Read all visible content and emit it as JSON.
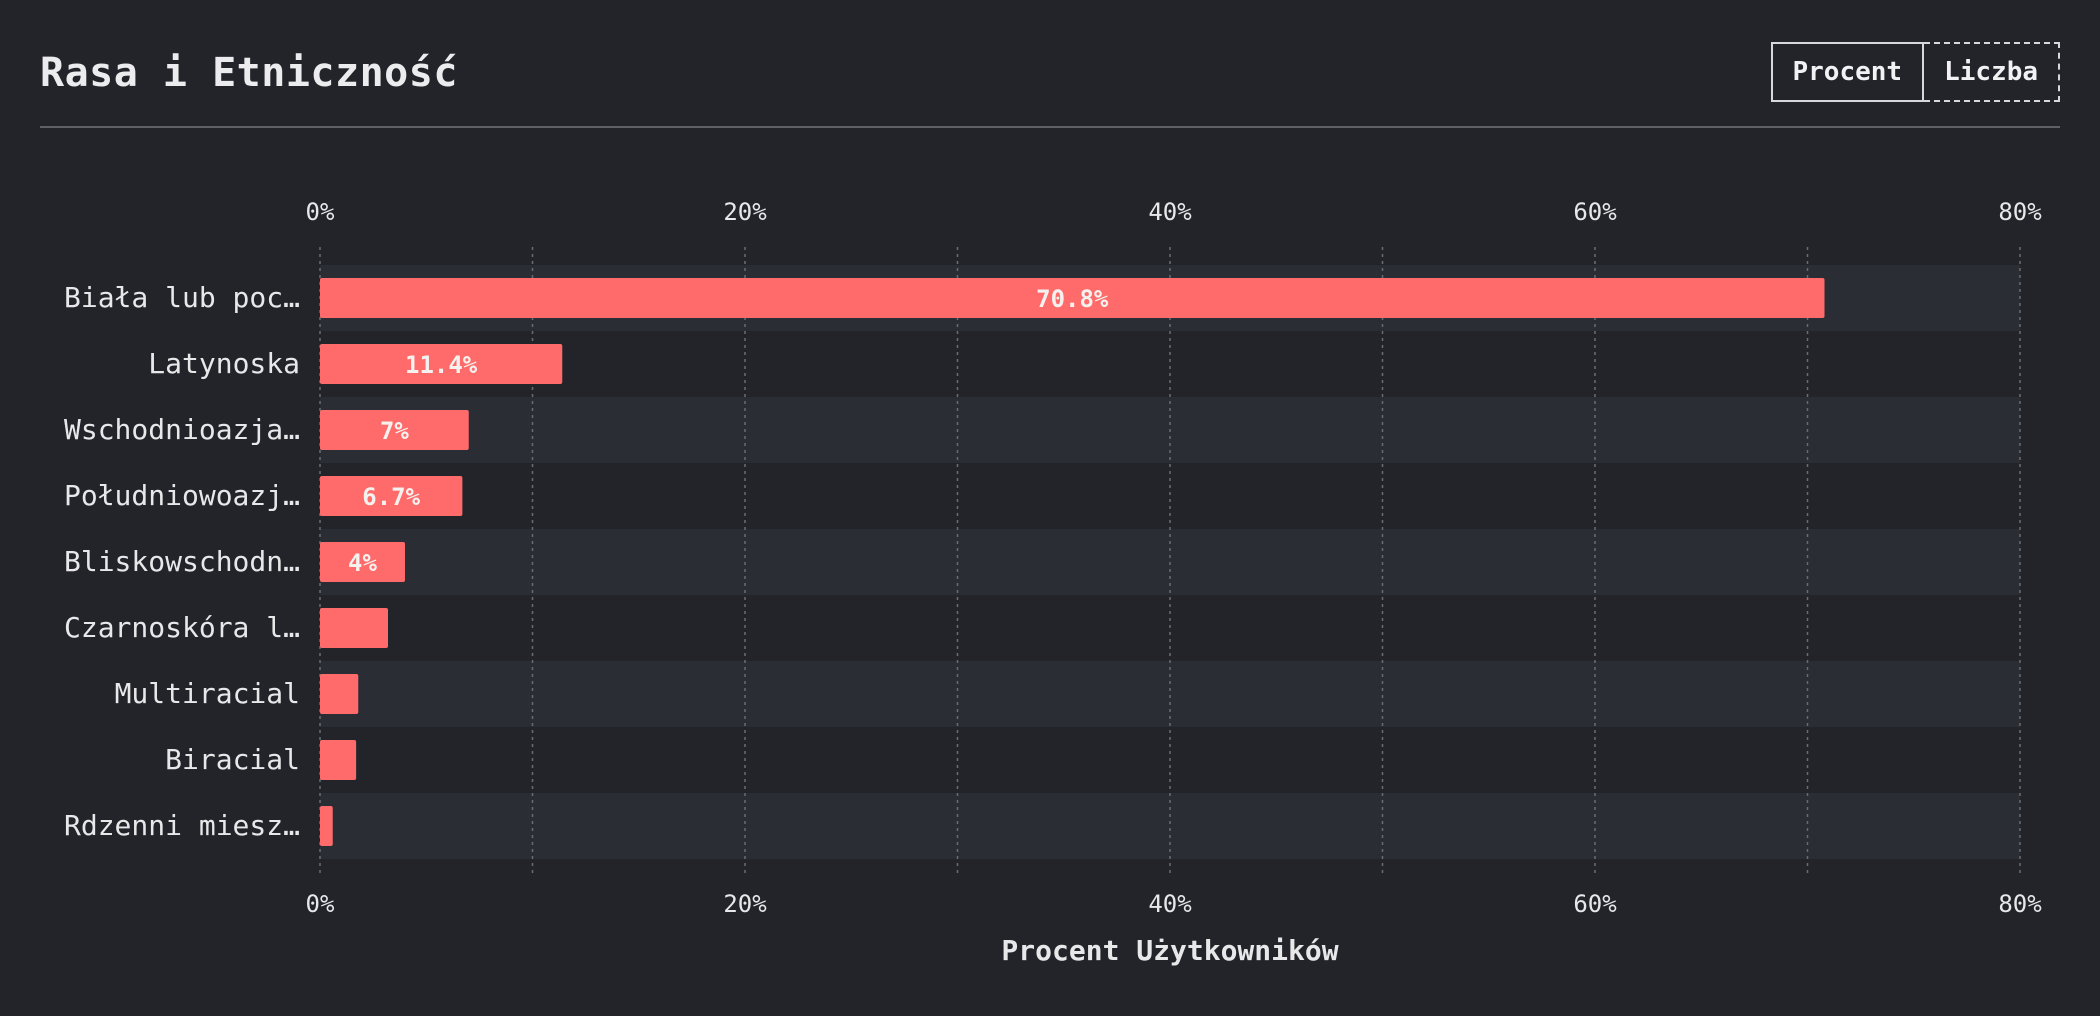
{
  "header": {
    "title": "Rasa i Etniczność",
    "toggle": {
      "percent_label": "Procent",
      "count_label": "Liczba",
      "selected": "Procent"
    }
  },
  "colors": {
    "background": "#232429",
    "bar": "#ff6b6b",
    "row_band": "#2b2d34",
    "grid": "#6b6c72",
    "text": "#e8e8ea"
  },
  "chart_data": {
    "type": "bar",
    "orientation": "horizontal",
    "categories": [
      "Biała lub poc…",
      "Latynoska",
      "Wschodnioazja…",
      "Południowoazj…",
      "Bliskowschodn…",
      "Czarnoskóra l…",
      "Multiracial",
      "Biracial",
      "Rdzenni miesz…"
    ],
    "values": [
      70.8,
      11.4,
      7,
      6.7,
      4,
      3.2,
      1.8,
      1.7,
      0.6
    ],
    "data_labels": [
      "70.8%",
      "11.4%",
      "7%",
      "6.7%",
      "4%",
      "",
      "",
      "",
      ""
    ],
    "xlim": [
      0,
      80
    ],
    "xticks": [
      0,
      20,
      40,
      60,
      80
    ],
    "xtick_labels": [
      "0%",
      "20%",
      "40%",
      "60%",
      "80%"
    ],
    "minor_gridlines": [
      10,
      30,
      50,
      70
    ],
    "xlabel": "Procent Użytkowników",
    "ylabel": "",
    "grid": true,
    "tick_labels_top_and_bottom": true
  }
}
